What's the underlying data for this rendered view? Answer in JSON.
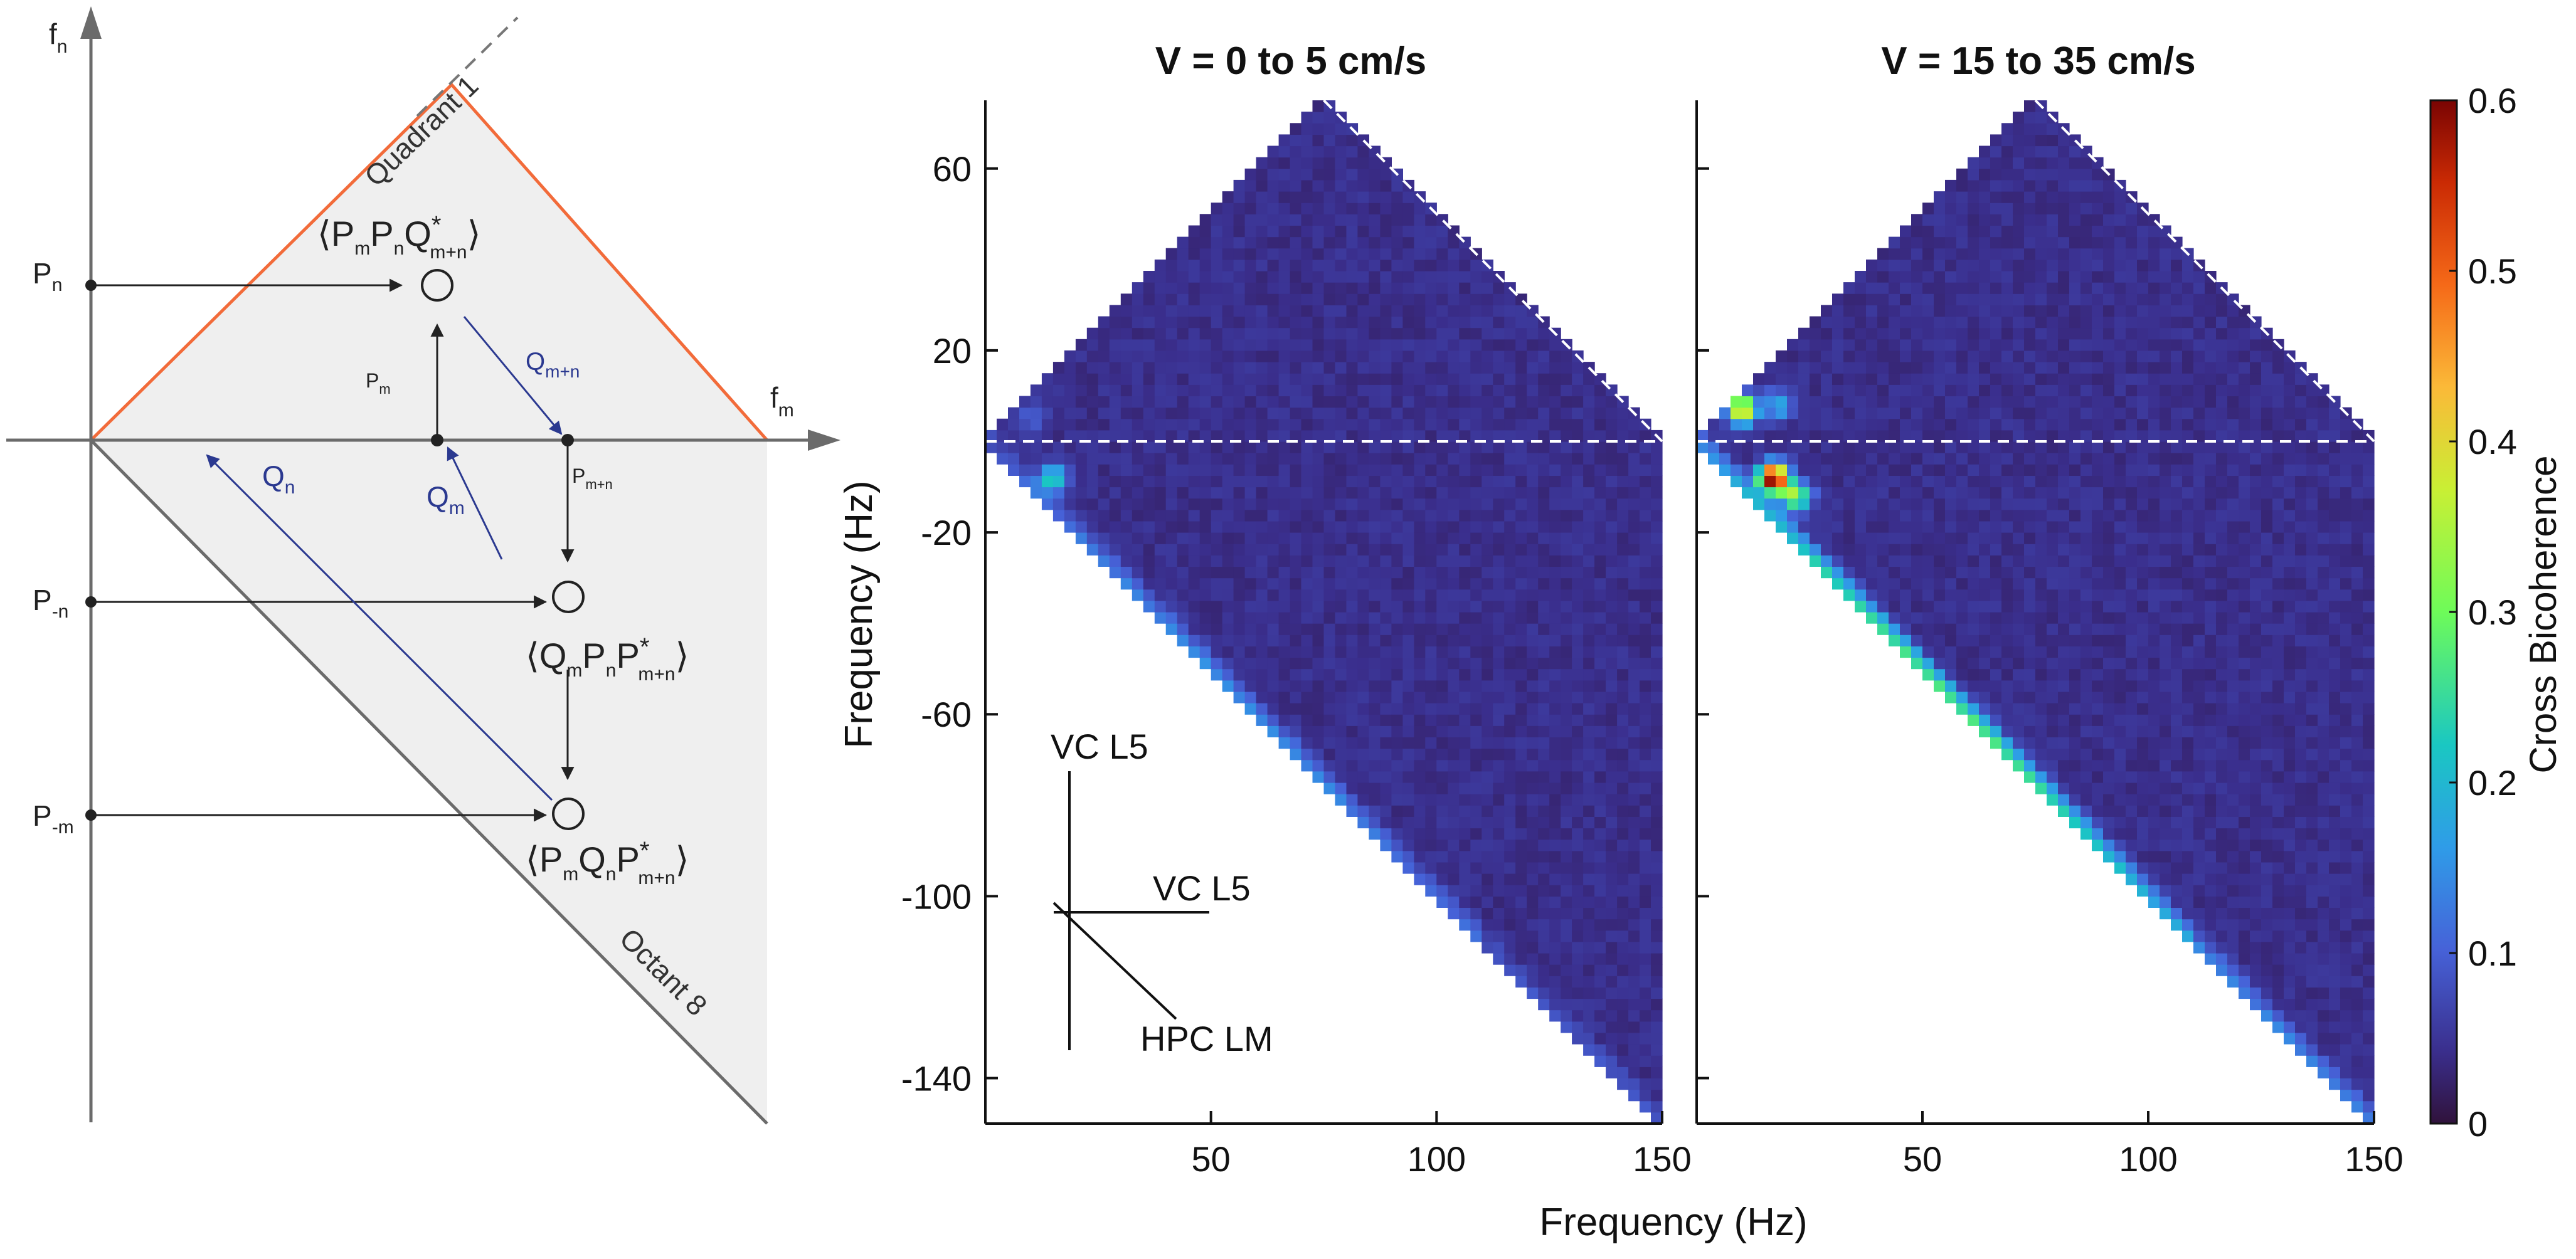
{
  "diagram": {
    "axis_fn": "f",
    "axis_fn_sub": "n",
    "axis_fm": "f",
    "axis_fm_sub": "m",
    "quadrant_label": "Quadrant 1",
    "octant_label": "Octant 8",
    "left_labels": [
      {
        "main": "P",
        "sub": "n"
      },
      {
        "main": "P",
        "sub": "-n"
      },
      {
        "main": "P",
        "sub": "-m"
      }
    ],
    "pm_label": {
      "main": "P",
      "sub": "m"
    },
    "pmn_label": {
      "main": "P",
      "sub": "m+n"
    },
    "qmn_label": {
      "main": "Q",
      "sub": "m+n"
    },
    "qm_label": {
      "main": "Q",
      "sub": "m"
    },
    "qn_label": {
      "main": "Q",
      "sub": "n"
    },
    "expr1": {
      "a": "P",
      "a_sub": "m",
      "b": "P",
      "b_sub": "n",
      "c": "Q",
      "c_sup": "*",
      "c_sub": "m+n"
    },
    "expr2": {
      "a": "Q",
      "a_sub": "m",
      "b": "P",
      "b_sub": "n",
      "c": "P",
      "c_sup": "*",
      "c_sub": "m+n"
    },
    "expr3": {
      "a": "P",
      "a_sub": "m",
      "b": "Q",
      "b_sub": "n",
      "c": "P",
      "c_sup": "*",
      "c_sub": "m+n"
    },
    "colors": {
      "orange": "#f26b3a",
      "blue": "#2b3990",
      "gray": "#6b6b6b",
      "fill": "#efefef"
    }
  },
  "chart_data": {
    "type": "heatmap",
    "panels": [
      {
        "title": "V = 0 to 5 cm/s",
        "hotspots": [
          [
            15,
            -8,
            0.2
          ],
          [
            10,
            5,
            0.06
          ]
        ],
        "diagonal_strength": 0.1
      },
      {
        "title": "V = 15 to 35 cm/s",
        "hotspots": [
          [
            17,
            -8,
            0.6
          ],
          [
            22,
            -12,
            0.3
          ],
          [
            10,
            7,
            0.4
          ],
          [
            18,
            8,
            0.15
          ]
        ],
        "diagonal_strength": 0.22
      }
    ],
    "xlabel": "Frequency (Hz)",
    "ylabel": "Frequency (Hz)",
    "xlim": [
      0,
      150
    ],
    "ylim": [
      -150,
      75
    ],
    "xticks": [
      50,
      100,
      150
    ],
    "yticks": [
      60,
      20,
      -20,
      -60,
      -100,
      -140
    ],
    "colorbar": {
      "label": "Cross Bicoherence",
      "ticks": [
        "0.6",
        "0.5",
        "0.4",
        "0.3",
        "0.2",
        "0.1",
        "0"
      ],
      "range": [
        0,
        0.6
      ]
    },
    "inset": {
      "vertical_label": "VC L5",
      "horizontal_label": "VC L5",
      "diagonal_label": "HPC LM"
    }
  }
}
